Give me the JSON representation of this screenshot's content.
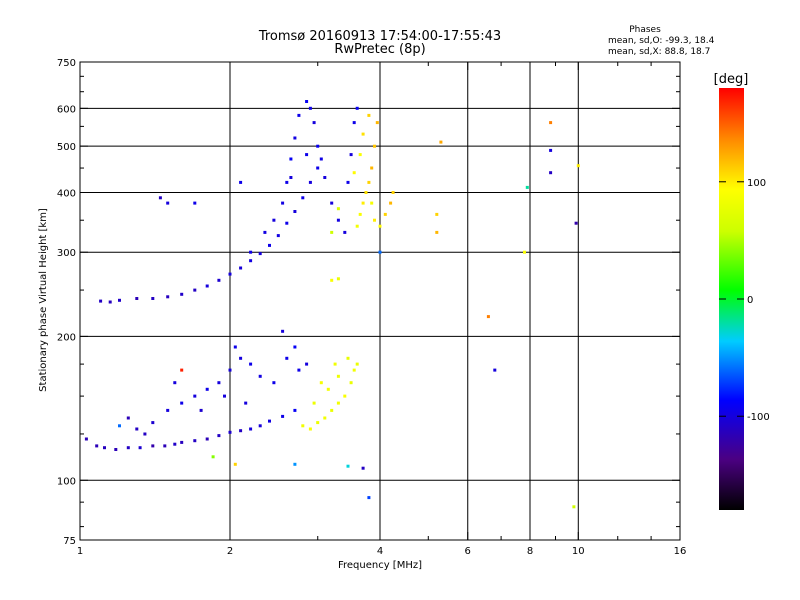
{
  "chart_data": {
    "type": "scatter",
    "title": "Tromsø 20160913 17:54:00-17:55:43",
    "subtitle": "RwPretec (8p)",
    "xlabel": "Frequency [MHz]",
    "ylabel": "Stationary phase Virtual Height [km]",
    "xscale": "log",
    "yscale": "log",
    "xlim": [
      1,
      16
    ],
    "ylim": [
      75,
      750
    ],
    "x_ticks": [
      1,
      2,
      4,
      6,
      8,
      10,
      16
    ],
    "x_tick_labels": [
      "1",
      "2",
      "4",
      "6",
      "8",
      "10",
      "16"
    ],
    "y_ticks": [
      75,
      100,
      200,
      300,
      400,
      500,
      600,
      750
    ],
    "y_tick_labels": [
      "75",
      "100",
      "200",
      "300",
      "400",
      "500",
      "600",
      "750"
    ],
    "grid": true,
    "stats": {
      "heading": "Phases",
      "line_o": "mean, sd,O: -99.3, 18.4",
      "line_x": "mean, sd,X: 88.8, 18.7"
    },
    "colorbar": {
      "label": "[deg]",
      "range": [
        -180,
        180
      ],
      "ticks": [
        100,
        0,
        -100
      ],
      "tick_labels": [
        "100",
        "0",
        "-100"
      ]
    },
    "series": [
      {
        "trace": "lower",
        "values": [
          [
            1.03,
            122,
            -115
          ],
          [
            1.08,
            118,
            -115
          ],
          [
            1.12,
            117,
            -112
          ],
          [
            1.18,
            116,
            -115
          ],
          [
            1.25,
            117,
            -110
          ],
          [
            1.32,
            117,
            -105
          ],
          [
            1.4,
            118,
            -120
          ],
          [
            1.48,
            118,
            -115
          ],
          [
            1.55,
            119,
            -108
          ],
          [
            1.6,
            120,
            -112
          ],
          [
            1.7,
            121,
            -110
          ],
          [
            1.8,
            122,
            -115
          ],
          [
            1.9,
            124,
            -110
          ],
          [
            2.0,
            126,
            -105
          ],
          [
            2.1,
            127,
            -110
          ],
          [
            2.2,
            128,
            -100
          ],
          [
            2.3,
            130,
            -102
          ],
          [
            2.4,
            133,
            -98
          ],
          [
            2.55,
            136,
            -95
          ],
          [
            2.7,
            140,
            -90
          ],
          [
            1.3,
            128,
            -110
          ],
          [
            1.4,
            132,
            -105
          ],
          [
            1.5,
            140,
            -100
          ],
          [
            1.6,
            145,
            -95
          ],
          [
            1.7,
            150,
            -100
          ],
          [
            1.8,
            155,
            -95
          ],
          [
            1.9,
            160,
            -100
          ],
          [
            2.0,
            170,
            -100
          ],
          [
            2.05,
            190,
            -95
          ],
          [
            2.1,
            180,
            -100
          ],
          [
            2.2,
            175,
            -95
          ],
          [
            2.3,
            165,
            -98
          ],
          [
            2.45,
            160,
            -95
          ],
          [
            2.55,
            205,
            -100
          ],
          [
            2.6,
            180,
            -95
          ],
          [
            2.7,
            190,
            -90
          ],
          [
            2.75,
            170,
            -95
          ],
          [
            2.85,
            175,
            -100
          ],
          [
            1.25,
            135,
            -115
          ],
          [
            1.35,
            125,
            -110
          ],
          [
            1.55,
            160,
            -100
          ],
          [
            1.75,
            140,
            -105
          ],
          [
            1.95,
            150,
            -100
          ],
          [
            2.15,
            145,
            -100
          ],
          [
            2.8,
            130,
            85
          ],
          [
            2.9,
            128,
            90
          ],
          [
            3.0,
            132,
            80
          ],
          [
            3.1,
            135,
            85
          ],
          [
            3.2,
            140,
            80
          ],
          [
            3.3,
            145,
            85
          ],
          [
            3.4,
            150,
            90
          ],
          [
            3.5,
            160,
            80
          ],
          [
            3.55,
            170,
            85
          ],
          [
            3.45,
            180,
            78
          ],
          [
            3.3,
            165,
            82
          ],
          [
            3.15,
            155,
            86
          ],
          [
            2.95,
            145,
            82
          ],
          [
            3.05,
            160,
            88
          ],
          [
            3.25,
            175,
            84
          ],
          [
            3.6,
            175,
            80
          ],
          [
            1.2,
            130,
            -60
          ],
          [
            1.6,
            170,
            170
          ],
          [
            1.85,
            112,
            40
          ],
          [
            2.05,
            108,
            110
          ],
          [
            2.7,
            108,
            -50
          ],
          [
            3.45,
            107,
            -30
          ],
          [
            3.7,
            106,
            -110
          ],
          [
            3.8,
            92,
            -70
          ],
          [
            9.8,
            88,
            60
          ],
          [
            6.8,
            170,
            -100
          ]
        ]
      },
      {
        "trace": "upper",
        "values": [
          [
            1.1,
            237,
            -110
          ],
          [
            1.15,
            236,
            -112
          ],
          [
            1.2,
            238,
            -108
          ],
          [
            1.3,
            240,
            -115
          ],
          [
            1.4,
            240,
            -110
          ],
          [
            1.5,
            242,
            -112
          ],
          [
            1.6,
            245,
            -108
          ],
          [
            1.7,
            250,
            -110
          ],
          [
            1.8,
            255,
            -100
          ],
          [
            1.9,
            262,
            -105
          ],
          [
            2.0,
            270,
            -100
          ],
          [
            2.1,
            278,
            -102
          ],
          [
            2.2,
            288,
            -98
          ],
          [
            2.3,
            298,
            -100
          ],
          [
            2.4,
            310,
            -95
          ],
          [
            2.5,
            325,
            -98
          ],
          [
            2.6,
            345,
            -95
          ],
          [
            2.7,
            365,
            -100
          ],
          [
            2.8,
            390,
            -95
          ],
          [
            2.9,
            420,
            -100
          ],
          [
            3.0,
            450,
            -95
          ],
          [
            2.55,
            380,
            -98
          ],
          [
            2.6,
            420,
            -95
          ],
          [
            2.65,
            470,
            -90
          ],
          [
            2.7,
            520,
            -98
          ],
          [
            2.75,
            580,
            -95
          ],
          [
            2.85,
            620,
            -90
          ],
          [
            2.9,
            600,
            -95
          ],
          [
            2.95,
            560,
            -100
          ],
          [
            3.0,
            500,
            -92
          ],
          [
            3.05,
            470,
            -96
          ],
          [
            3.1,
            430,
            -100
          ],
          [
            3.2,
            380,
            -100
          ],
          [
            3.3,
            350,
            -98
          ],
          [
            3.4,
            330,
            -100
          ],
          [
            3.45,
            420,
            -95
          ],
          [
            3.5,
            480,
            -100
          ],
          [
            3.55,
            560,
            -95
          ],
          [
            3.6,
            600,
            -90
          ],
          [
            2.45,
            350,
            -100
          ],
          [
            2.35,
            330,
            -98
          ],
          [
            2.2,
            300,
            -96
          ],
          [
            2.65,
            430,
            -100
          ],
          [
            2.85,
            480,
            -95
          ],
          [
            3.2,
            330,
            60
          ],
          [
            3.3,
            370,
            70
          ],
          [
            3.6,
            340,
            85
          ],
          [
            3.65,
            360,
            90
          ],
          [
            3.7,
            380,
            100
          ],
          [
            3.75,
            400,
            105
          ],
          [
            3.8,
            420,
            110
          ],
          [
            3.85,
            450,
            120
          ],
          [
            3.9,
            500,
            115
          ],
          [
            3.95,
            560,
            120
          ],
          [
            3.8,
            580,
            110
          ],
          [
            3.7,
            530,
            105
          ],
          [
            3.9,
            350,
            100
          ],
          [
            4.0,
            340,
            95
          ],
          [
            4.1,
            360,
            110
          ],
          [
            4.2,
            380,
            120
          ],
          [
            4.25,
            400,
            110
          ],
          [
            3.65,
            480,
            90
          ],
          [
            3.55,
            440,
            95
          ],
          [
            3.85,
            380,
            88
          ],
          [
            1.5,
            380,
            -100
          ],
          [
            1.45,
            390,
            -110
          ],
          [
            1.7,
            380,
            -95
          ],
          [
            2.1,
            420,
            -95
          ],
          [
            3.2,
            262,
            90
          ],
          [
            3.3,
            264,
            80
          ],
          [
            4.0,
            300,
            -60
          ],
          [
            5.2,
            330,
            120
          ],
          [
            5.2,
            360,
            110
          ],
          [
            5.3,
            510,
            125
          ],
          [
            6.6,
            220,
            140
          ],
          [
            7.8,
            300,
            90
          ],
          [
            7.9,
            410,
            -20
          ],
          [
            8.8,
            560,
            140
          ],
          [
            8.8,
            490,
            -100
          ],
          [
            8.8,
            440,
            -110
          ],
          [
            9.9,
            345,
            -120
          ],
          [
            10.0,
            455,
            100
          ]
        ]
      }
    ]
  }
}
